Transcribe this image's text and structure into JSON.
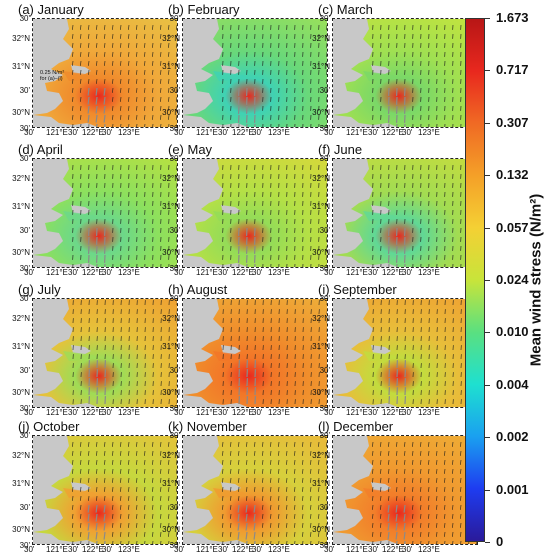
{
  "panels": [
    {
      "title": "(a) January",
      "palette": [
        "#f0a83a",
        "#e8c244",
        "#f08a2c"
      ]
    },
    {
      "title": "(b) February",
      "palette": [
        "#69d87a",
        "#9be05a",
        "#3fd2b4"
      ]
    },
    {
      "title": "(c) March",
      "palette": [
        "#9fe052",
        "#c6e43c",
        "#7ad868"
      ]
    },
    {
      "title": "(d) April",
      "palette": [
        "#8ce05e",
        "#b9e040",
        "#6cd88a"
      ]
    },
    {
      "title": "(e) May",
      "palette": [
        "#b4e046",
        "#d7d83a",
        "#94dc58"
      ]
    },
    {
      "title": "(f) June",
      "palette": [
        "#a2dc52",
        "#c8dc3c",
        "#60d896"
      ]
    },
    {
      "title": "(g) July",
      "palette": [
        "#e6c23a",
        "#f0a032",
        "#9fdc56"
      ]
    },
    {
      "title": "(h) August",
      "palette": [
        "#f08e2c",
        "#eeb03a",
        "#f27628"
      ]
    },
    {
      "title": "(i) September",
      "palette": [
        "#e8be3a",
        "#f0a032",
        "#c2dc3e"
      ]
    },
    {
      "title": "(j) October",
      "palette": [
        "#c6d83e",
        "#e6c23a",
        "#f0a032"
      ]
    },
    {
      "title": "(k) November",
      "palette": [
        "#d6d03c",
        "#ebb83a",
        "#f09a30"
      ]
    },
    {
      "title": "(l) December",
      "palette": [
        "#f09a30",
        "#eeae36",
        "#f27e2a"
      ]
    }
  ],
  "axes": {
    "lat_labels": [
      "32°N",
      "31°N",
      "30'",
      "30°N",
      "30'"
    ],
    "top_lat_label": "30'",
    "lon_labels": [
      "30'",
      "121°E",
      "30'",
      "122°E",
      "30'",
      "123°E"
    ]
  },
  "scale_arrow": {
    "line1": "0.25 N/m²",
    "line2": "for (a)–(l)"
  },
  "colorbar": {
    "label": "Mean wind stress (N/m²)",
    "ticks": [
      "1.673",
      "0.717",
      "0.307",
      "0.132",
      "0.057",
      "0.024",
      "0.010",
      "0.004",
      "0.002",
      "0.001",
      "0"
    ],
    "colors": [
      "#2a1a9a",
      "#1e3cf0",
      "#1aa0f0",
      "#1ee0d0",
      "#5ae080",
      "#c8e43a",
      "#f4d034",
      "#f4a028",
      "#f06a24",
      "#e8281e",
      "#b81616"
    ],
    "land_color": "#c8c8c8",
    "arrow_color": "#1a1a1a",
    "strong_arrow_color": "#8a8a8a",
    "high_stress_color": "#e8281e"
  }
}
